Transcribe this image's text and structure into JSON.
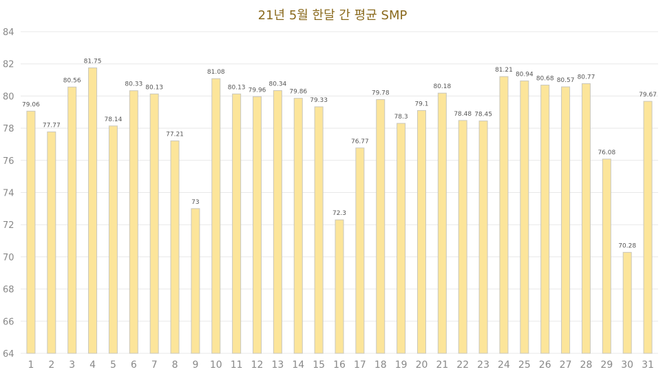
{
  "chart_data": {
    "type": "bar",
    "title": "21년 5월 한달 간 평균 SMP",
    "xlabel": "",
    "ylabel": "",
    "ylim": [
      64,
      84
    ],
    "yticks": [
      64,
      66,
      68,
      70,
      72,
      74,
      76,
      78,
      80,
      82,
      84
    ],
    "categories": [
      "1",
      "2",
      "3",
      "4",
      "5",
      "6",
      "7",
      "8",
      "9",
      "10",
      "11",
      "12",
      "13",
      "14",
      "15",
      "16",
      "17",
      "18",
      "19",
      "20",
      "21",
      "22",
      "23",
      "24",
      "25",
      "26",
      "27",
      "28",
      "29",
      "30",
      "31"
    ],
    "values": [
      79.06,
      77.77,
      80.56,
      81.75,
      78.14,
      80.33,
      80.13,
      77.21,
      73,
      81.08,
      80.13,
      79.96,
      80.34,
      79.86,
      79.33,
      72.3,
      76.77,
      79.78,
      78.3,
      79.1,
      80.18,
      78.48,
      78.45,
      81.21,
      80.94,
      80.68,
      80.57,
      80.77,
      76.08,
      70.28,
      79.67
    ],
    "grid": true,
    "legend": "none",
    "colors": {
      "bar_fill": "#fce59a",
      "bar_stroke": "#c9c7bd",
      "grid": "#e8e8e8",
      "title": "#8a6a1e",
      "tick_text": "#888888",
      "label_text": "#555555"
    }
  }
}
